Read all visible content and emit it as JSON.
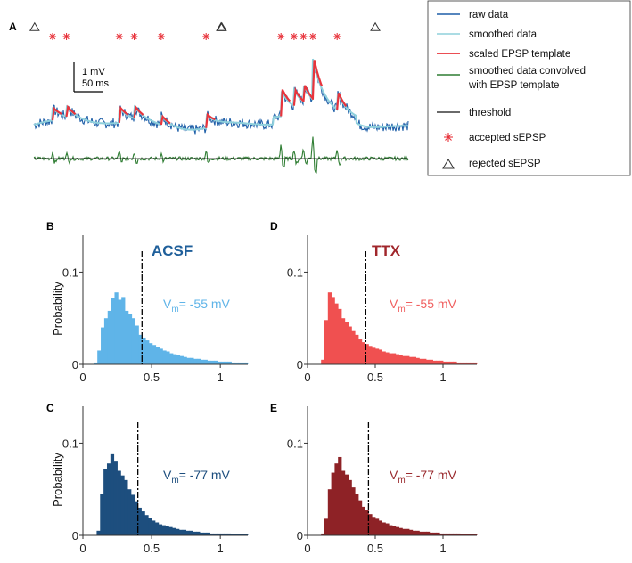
{
  "panel_labels": [
    "A",
    "B",
    "C",
    "D",
    "E"
  ],
  "scale_bar": {
    "amplitude": "1 mV",
    "time": "50 ms"
  },
  "colors": {
    "raw": "#1f5fa8",
    "smoothed": "#8fd0dc",
    "template": "#e8343c",
    "convolved": "#2e7d32",
    "threshold": "#111111",
    "acsf_light": "#5fb4e8",
    "acsf_dark": "#1d4e7e",
    "ttx_light": "#f05050",
    "ttx_dark": "#8e2226",
    "acsf_label": "#1f5f9a",
    "ttx_label": "#a0262b",
    "vm_acsf_light": "#5fb4e8",
    "vm_acsf_dark": "#1d4e7e",
    "vm_ttx_light": "#f06060",
    "vm_ttx_dark": "#9a2a2e"
  },
  "legend": {
    "entries": [
      {
        "id": "raw",
        "label": "raw data"
      },
      {
        "id": "smoothed",
        "label": "smoothed data"
      },
      {
        "id": "template",
        "label": "scaled EPSP template"
      },
      {
        "id": "convolved",
        "label_line1": "smoothed data convolved",
        "label_line2": "with EPSP template"
      },
      {
        "id": "threshold",
        "label": "threshold"
      },
      {
        "id": "accepted",
        "label": "accepted sEPSP",
        "marker": "asterisk"
      },
      {
        "id": "rejected",
        "label": "rejected sEPSP",
        "marker": "triangle"
      }
    ]
  },
  "chart_data": [
    {
      "id": "A",
      "type": "line",
      "title": "",
      "description_series": [
        "raw data",
        "smoothed data",
        "scaled EPSP template",
        "smoothed data convolved with EPSP template",
        "threshold"
      ],
      "time_range_ms": [
        0,
        1000
      ],
      "accepted_event_times_ms": [
        50,
        87,
        228,
        268,
        340,
        460,
        660,
        695,
        720,
        745,
        810
      ],
      "rejected_event_times_ms": [
        2,
        500,
        502,
        912
      ],
      "event_amplitudes_mV": [
        0.4,
        0.35,
        0.5,
        0.4,
        0.3,
        0.45,
        0.9,
        0.55,
        0.6,
        1.4,
        0.6
      ],
      "scale_bar_mV": 1,
      "scale_bar_ms": 50
    },
    {
      "id": "B",
      "type": "bar",
      "condition": "ACSF",
      "vm_label_prefix": "V",
      "vm_label_sub": "m",
      "vm_label_suffix": "= -55 mV",
      "ylabel": "Probability",
      "xlim": [
        0,
        1.2
      ],
      "ylim": [
        0,
        0.14
      ],
      "xticks": [
        0,
        0.5,
        1
      ],
      "xtick_labels": [
        "0",
        "0.5",
        "1"
      ],
      "yticks": [
        0,
        0.1
      ],
      "ytick_labels": [
        "0",
        "0.1"
      ],
      "threshold_x": 0.43,
      "bin_start": 0.08,
      "bin_width": 0.025,
      "values": [
        0.002,
        0.015,
        0.04,
        0.05,
        0.058,
        0.072,
        0.078,
        0.07,
        0.073,
        0.058,
        0.055,
        0.05,
        0.042,
        0.032,
        0.029,
        0.026,
        0.023,
        0.021,
        0.019,
        0.017,
        0.015,
        0.014,
        0.012,
        0.011,
        0.01,
        0.009,
        0.008,
        0.007,
        0.007,
        0.006,
        0.006,
        0.005,
        0.005,
        0.004,
        0.004,
        0.004,
        0.003,
        0.003,
        0.003,
        0.003,
        0.002,
        0.002,
        0.002,
        0.002,
        0.002
      ]
    },
    {
      "id": "C",
      "type": "bar",
      "condition": "",
      "vm_label_prefix": "V",
      "vm_label_sub": "m",
      "vm_label_suffix": "= -77 mV",
      "ylabel": "Probability",
      "xlim": [
        0,
        1.2
      ],
      "ylim": [
        0,
        0.14
      ],
      "xticks": [
        0,
        0.5,
        1
      ],
      "xtick_labels": [
        "0",
        "0.5",
        "1"
      ],
      "yticks": [
        0,
        0.1
      ],
      "ytick_labels": [
        "0",
        "0.1"
      ],
      "threshold_x": 0.4,
      "bin_start": 0.1,
      "bin_width": 0.025,
      "values": [
        0.005,
        0.045,
        0.072,
        0.078,
        0.088,
        0.08,
        0.07,
        0.065,
        0.06,
        0.05,
        0.044,
        0.037,
        0.03,
        0.026,
        0.022,
        0.019,
        0.016,
        0.014,
        0.012,
        0.011,
        0.01,
        0.009,
        0.008,
        0.007,
        0.006,
        0.006,
        0.005,
        0.005,
        0.004,
        0.004,
        0.003,
        0.003,
        0.003,
        0.002,
        0.002,
        0.002,
        0.002,
        0.002,
        0.002,
        0.001,
        0.001,
        0.001,
        0.001,
        0.001
      ]
    },
    {
      "id": "D",
      "type": "bar",
      "condition": "TTX",
      "vm_label_prefix": "V",
      "vm_label_sub": "m",
      "vm_label_suffix": "= -55 mV",
      "ylabel": "",
      "xlim": [
        0,
        1.25
      ],
      "ylim": [
        0,
        0.14
      ],
      "xticks": [
        0,
        0.5,
        1
      ],
      "xtick_labels": [
        "0",
        "0.5",
        "1"
      ],
      "yticks": [
        0,
        0.1
      ],
      "ytick_labels": [
        "0",
        "0.1"
      ],
      "threshold_x": 0.43,
      "bin_start": 0.1,
      "bin_width": 0.025,
      "values": [
        0.005,
        0.048,
        0.078,
        0.073,
        0.066,
        0.06,
        0.05,
        0.046,
        0.041,
        0.036,
        0.032,
        0.027,
        0.024,
        0.022,
        0.02,
        0.018,
        0.017,
        0.016,
        0.014,
        0.013,
        0.012,
        0.012,
        0.011,
        0.01,
        0.009,
        0.009,
        0.008,
        0.008,
        0.007,
        0.006,
        0.006,
        0.005,
        0.005,
        0.004,
        0.004,
        0.004,
        0.003,
        0.003,
        0.003,
        0.003,
        0.002,
        0.002,
        0.002,
        0.002,
        0.002,
        0.002
      ]
    },
    {
      "id": "E",
      "type": "bar",
      "condition": "",
      "vm_label_prefix": "V",
      "vm_label_sub": "m",
      "vm_label_suffix": "= -77 mV",
      "ylabel": "",
      "xlim": [
        0,
        1.25
      ],
      "ylim": [
        0,
        0.14
      ],
      "xticks": [
        0,
        0.5,
        1
      ],
      "xtick_labels": [
        "0",
        "0.5",
        "1"
      ],
      "yticks": [
        0,
        0.1
      ],
      "ytick_labels": [
        "0",
        "0.1"
      ],
      "threshold_x": 0.45,
      "bin_start": 0.1,
      "bin_width": 0.025,
      "values": [
        0.002,
        0.018,
        0.05,
        0.068,
        0.078,
        0.085,
        0.07,
        0.066,
        0.06,
        0.052,
        0.045,
        0.038,
        0.031,
        0.027,
        0.023,
        0.02,
        0.018,
        0.016,
        0.014,
        0.013,
        0.011,
        0.01,
        0.009,
        0.008,
        0.007,
        0.007,
        0.006,
        0.005,
        0.005,
        0.004,
        0.004,
        0.004,
        0.003,
        0.003,
        0.003,
        0.002,
        0.002,
        0.002,
        0.002,
        0.002,
        0.002,
        0.001,
        0.001,
        0.001,
        0.001,
        0.001
      ]
    }
  ]
}
